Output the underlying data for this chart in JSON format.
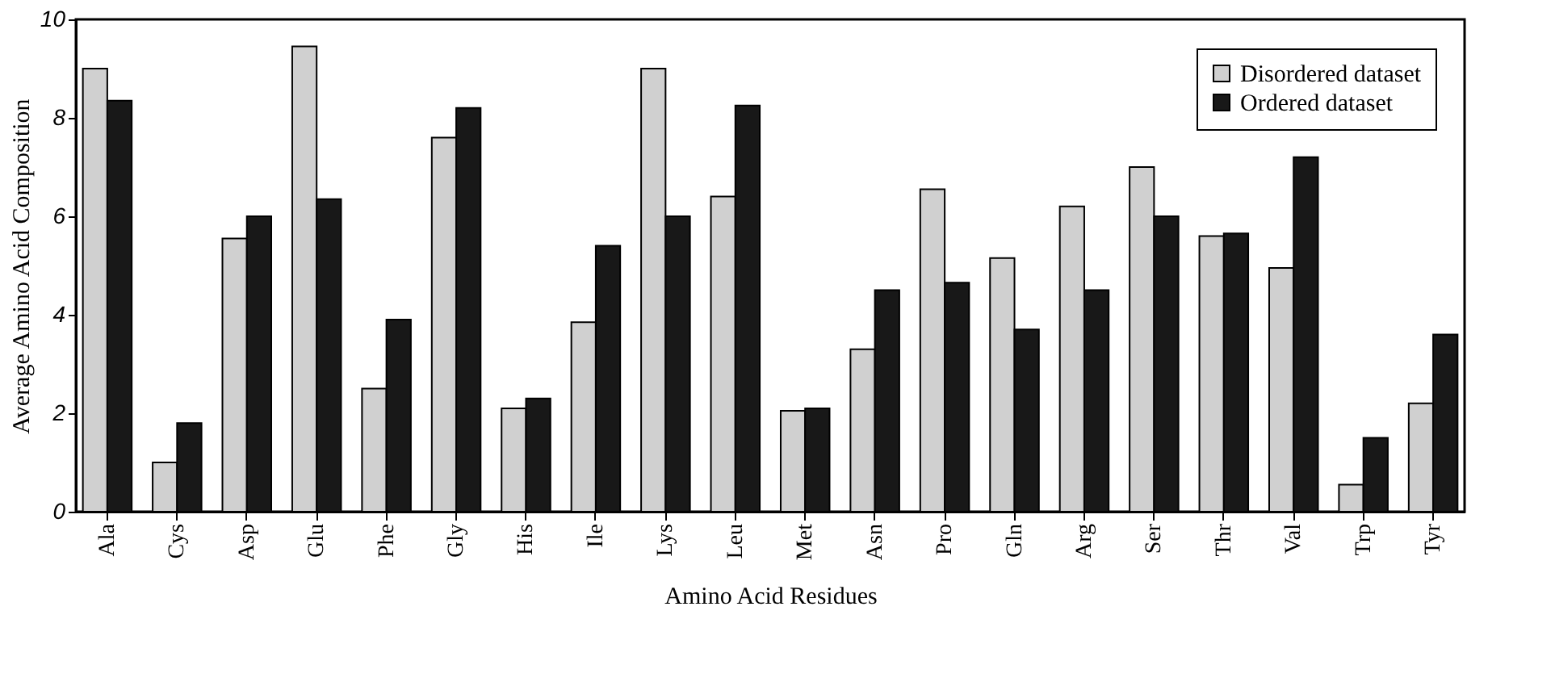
{
  "chart_data": {
    "type": "bar",
    "xlabel": "Amino Acid Residues",
    "ylabel": "Average Amino Acid Composition",
    "categories": [
      "Ala",
      "Cys",
      "Asp",
      "Glu",
      "Phe",
      "Gly",
      "His",
      "Ile",
      "Lys",
      "Leu",
      "Met",
      "Asn",
      "Pro",
      "Gln",
      "Arg",
      "Ser",
      "Thr",
      "Val",
      "Trp",
      "Tyr"
    ],
    "series": [
      {
        "name": "Disordered dataset",
        "color": "#d0d0d0",
        "values": [
          9.0,
          1.0,
          5.55,
          9.45,
          2.5,
          7.6,
          2.1,
          3.85,
          9.0,
          6.4,
          2.05,
          3.3,
          6.55,
          5.15,
          6.2,
          7.0,
          5.6,
          4.95,
          0.55,
          2.2
        ]
      },
      {
        "name": "Ordered dataset",
        "color": "#181818",
        "values": [
          8.35,
          1.8,
          6.0,
          6.35,
          3.9,
          8.2,
          2.3,
          5.4,
          6.0,
          8.25,
          2.1,
          4.5,
          4.65,
          3.7,
          4.5,
          6.0,
          5.65,
          7.2,
          1.5,
          3.6
        ]
      }
    ],
    "ylim": [
      0,
      10
    ],
    "yticks": [
      0,
      2,
      4,
      6,
      8,
      10
    ],
    "grid": false,
    "legend": "top right"
  }
}
